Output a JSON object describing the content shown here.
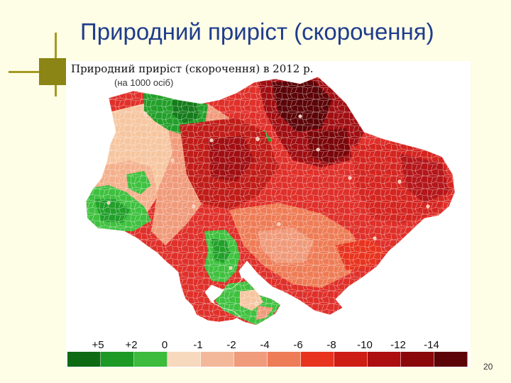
{
  "slide": {
    "title": "Природний приріст (скорочення)",
    "page_number": "20"
  },
  "map": {
    "title": "Природний приріст (скорочення) в 2012 р.",
    "subtitle": "(на 1000 осіб)",
    "region": "Ukraine",
    "colors": {
      "deep_green": "#157c1b",
      "green": "#22a02a",
      "light_green": "#3fc13f",
      "peach": "#f6c6a0",
      "salmon": "#f09a7a",
      "red": "#e0302a",
      "dark_red": "#a10e12",
      "darkest_red": "#5c0407"
    }
  },
  "legend": {
    "tick_labels": [
      "+5",
      "+2",
      "0",
      "-1",
      "-2",
      "-4",
      "-6",
      "-8",
      "-10",
      "-12",
      "-14"
    ],
    "tick_values": [
      5,
      2,
      0,
      -1,
      -2,
      -4,
      -6,
      -8,
      -10,
      -12,
      -14
    ],
    "swatches": [
      "#0f6a14",
      "#1d9a26",
      "#3cbb3c",
      "#f7d9bd",
      "#f3b89a",
      "#f09b7c",
      "#ee7c56",
      "#e8341f",
      "#cd1d15",
      "#ad0e10",
      "#8a070a",
      "#5c0407"
    ]
  }
}
